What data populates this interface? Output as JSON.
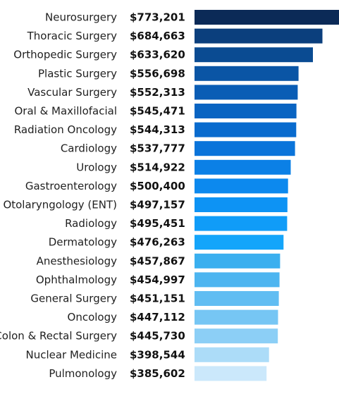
{
  "chart_data": {
    "type": "bar",
    "orientation": "horizontal",
    "title": "",
    "xlabel": "",
    "ylabel": "",
    "grid": false,
    "legend": "none",
    "categories": [
      "Neurosurgery",
      "Thoracic Surgery",
      "Orthopedic Surgery",
      "Plastic Surgery",
      "Vascular Surgery",
      "Oral & Maxillofacial",
      "Radiation Oncology",
      "Cardiology",
      "Urology",
      "Gastroenterology",
      "Otolaryngology (ENT)",
      "Radiology",
      "Dermatology",
      "Anesthesiology",
      "Ophthalmology",
      "General Surgery",
      "Oncology",
      "Colon & Rectal Surgery",
      "Nuclear Medicine",
      "Pulmonology"
    ],
    "values": [
      773201,
      684663,
      633620,
      556698,
      552313,
      545471,
      544313,
      537777,
      514922,
      500400,
      497157,
      495451,
      476263,
      457867,
      454997,
      451151,
      447112,
      445730,
      398544,
      385602
    ],
    "value_labels": [
      "$773,201",
      "$684,663",
      "$633,620",
      "$556,698",
      "$552,313",
      "$545,471",
      "$544,313",
      "$537,777",
      "$514,922",
      "$500,400",
      "$497,157",
      "$495,451",
      "$476,263",
      "$457,867",
      "$454,997",
      "$451,151",
      "$447,112",
      "$445,730",
      "$398,544",
      "$385,602"
    ],
    "bar_colors": [
      "#0b2a57",
      "#0b3f7d",
      "#0a4b92",
      "#0a55a5",
      "#0a5db5",
      "#0964c2",
      "#096bce",
      "#0a74da",
      "#0b80e6",
      "#0c89ee",
      "#0d93f4",
      "#109cf8",
      "#14a5fa",
      "#3aafef",
      "#4db5f0",
      "#61bdf2",
      "#76c6f4",
      "#8ccff6",
      "#acdcf8",
      "#cbe8fb"
    ]
  }
}
